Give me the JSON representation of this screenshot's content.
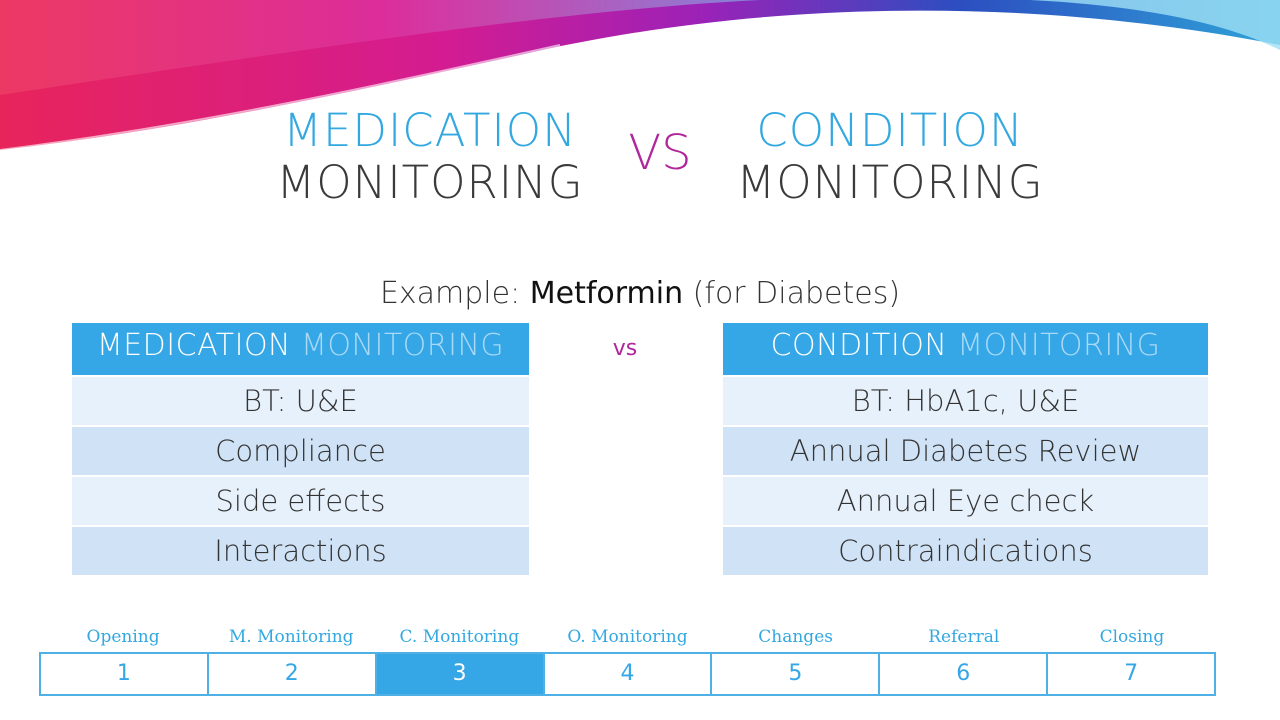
{
  "colors": {
    "accent_blue": "#35a6e6",
    "accent_magenta": "#b0269b",
    "title_dark": "#3a3a3a",
    "row_light": "#e7f1fb",
    "row_dark": "#cfe2f6"
  },
  "title": {
    "left_line1": "MEDICATION",
    "left_line2": "MONITORING",
    "vs": "VS",
    "right_line1": "CONDITION",
    "right_line2": "MONITORING"
  },
  "example": {
    "prefix": "Example: ",
    "drug": "Metformin",
    "suffix": " (for Diabetes)"
  },
  "left_table": {
    "header_a": "MEDICATION ",
    "header_b": "MONITORING",
    "rows": [
      "BT: U&E",
      "Compliance",
      "Side effects",
      "Interactions"
    ]
  },
  "mid_vs": "vs",
  "right_table": {
    "header_a": "CONDITION ",
    "header_b": "MONITORING",
    "rows": [
      "BT: HbA1c, U&E",
      "Annual Diabetes Review",
      "Annual Eye check",
      "Contraindications"
    ]
  },
  "nav": {
    "labels": [
      "Opening",
      "M. Monitoring",
      "C. Monitoring",
      "O. Monitoring",
      "Changes",
      "Referral",
      "Closing"
    ],
    "numbers": [
      "1",
      "2",
      "3",
      "4",
      "5",
      "6",
      "7"
    ],
    "active_index": 2
  }
}
